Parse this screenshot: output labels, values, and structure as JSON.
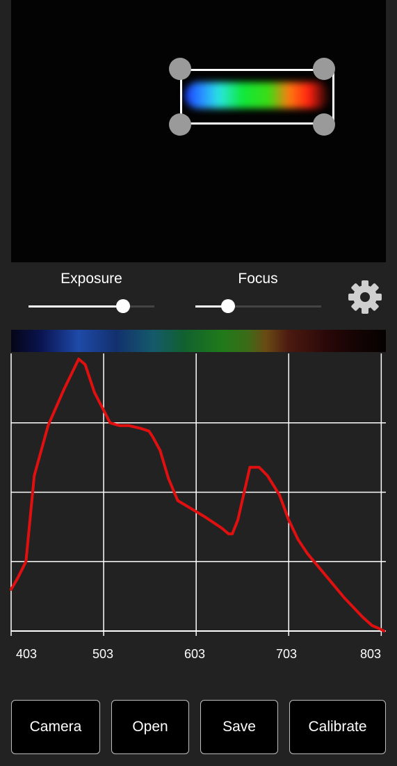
{
  "sliders": {
    "exposure": {
      "label": "Exposure",
      "value": 0.75
    },
    "focus": {
      "label": "Focus",
      "value": 0.26
    }
  },
  "icons": {
    "settings": "gear-icon"
  },
  "colors": {
    "curve": "#e01010",
    "background": "#222222",
    "grid": "#ffffff"
  },
  "chart_data": {
    "type": "line",
    "xlim": [
      403,
      808
    ],
    "ylim": [
      0,
      1
    ],
    "x_ticks": [
      "403",
      "503",
      "603",
      "703",
      "803"
    ],
    "grid": true,
    "series": [
      {
        "color": "#e01010",
        "x": [
          403,
          410,
          419,
          428,
          443,
          460,
          476,
          483,
          493,
          510,
          520,
          530,
          543,
          552,
          556,
          564,
          573,
          583,
          603,
          613,
          622,
          631,
          638,
          642,
          648,
          661,
          671,
          680,
          693,
          703,
          713,
          723,
          743,
          763,
          783,
          793,
          800,
          806
        ],
        "y": [
          0.15,
          0.19,
          0.25,
          0.56,
          0.74,
          0.87,
          0.98,
          0.96,
          0.86,
          0.75,
          0.74,
          0.74,
          0.73,
          0.72,
          0.7,
          0.65,
          0.55,
          0.47,
          0.43,
          0.41,
          0.39,
          0.37,
          0.35,
          0.35,
          0.4,
          0.59,
          0.59,
          0.56,
          0.49,
          0.4,
          0.33,
          0.28,
          0.2,
          0.12,
          0.05,
          0.02,
          0.01,
          0.0
        ]
      }
    ]
  },
  "buttons": {
    "camera": "Camera",
    "open": "Open",
    "save": "Save",
    "calibrate": "Calibrate"
  }
}
